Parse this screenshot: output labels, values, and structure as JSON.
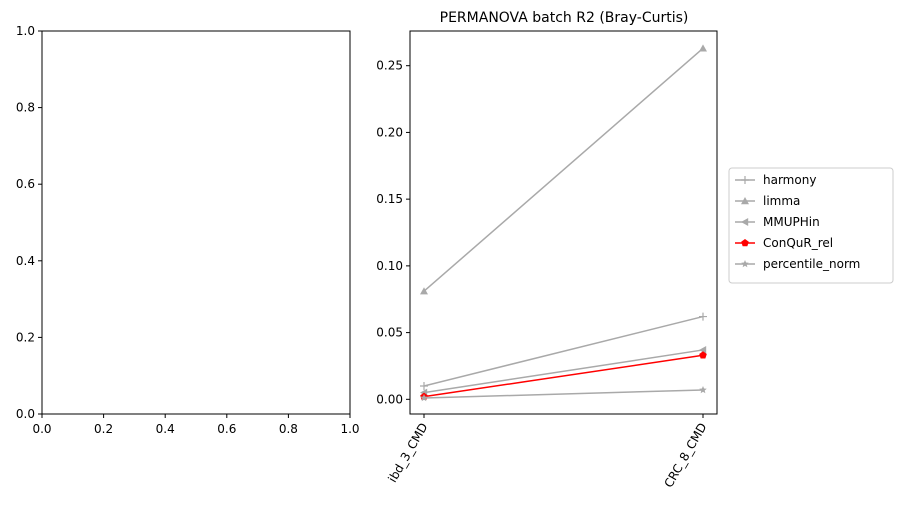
{
  "chart_data": [
    {
      "type": "line",
      "title": "",
      "xlabel": "",
      "ylabel": "",
      "xlim": [
        0,
        1
      ],
      "ylim": [
        0,
        1
      ],
      "xticks": [
        "0.0",
        "0.2",
        "0.4",
        "0.6",
        "0.8",
        "1.0"
      ],
      "yticks": [
        "0.0",
        "0.2",
        "0.4",
        "0.6",
        "0.8",
        "1.0"
      ],
      "series": []
    },
    {
      "type": "line",
      "title": "PERMANOVA batch R2 (Bray-Curtis)",
      "xlabel": "",
      "ylabel": "",
      "categories": [
        "ibd_3_CMD",
        "CRC_8_CMD"
      ],
      "ylim": [
        -0.011,
        0.276
      ],
      "yticks": [
        "0.00",
        "0.05",
        "0.10",
        "0.15",
        "0.20",
        "0.25"
      ],
      "legend_position": "right",
      "series": [
        {
          "name": "harmony",
          "values": [
            0.01,
            0.062
          ],
          "color": "#a9a9a9",
          "marker": "plus"
        },
        {
          "name": "limma",
          "values": [
            0.081,
            0.263
          ],
          "color": "#a9a9a9",
          "marker": "triangle-up"
        },
        {
          "name": "MMUPHin",
          "values": [
            0.005,
            0.037
          ],
          "color": "#a9a9a9",
          "marker": "triangle-left"
        },
        {
          "name": "ConQuR_rel",
          "values": [
            0.002,
            0.033
          ],
          "color": "#ff0000",
          "marker": "pentagon"
        },
        {
          "name": "percentile_norm",
          "values": [
            0.001,
            0.007
          ],
          "color": "#a9a9a9",
          "marker": "star"
        }
      ]
    }
  ]
}
